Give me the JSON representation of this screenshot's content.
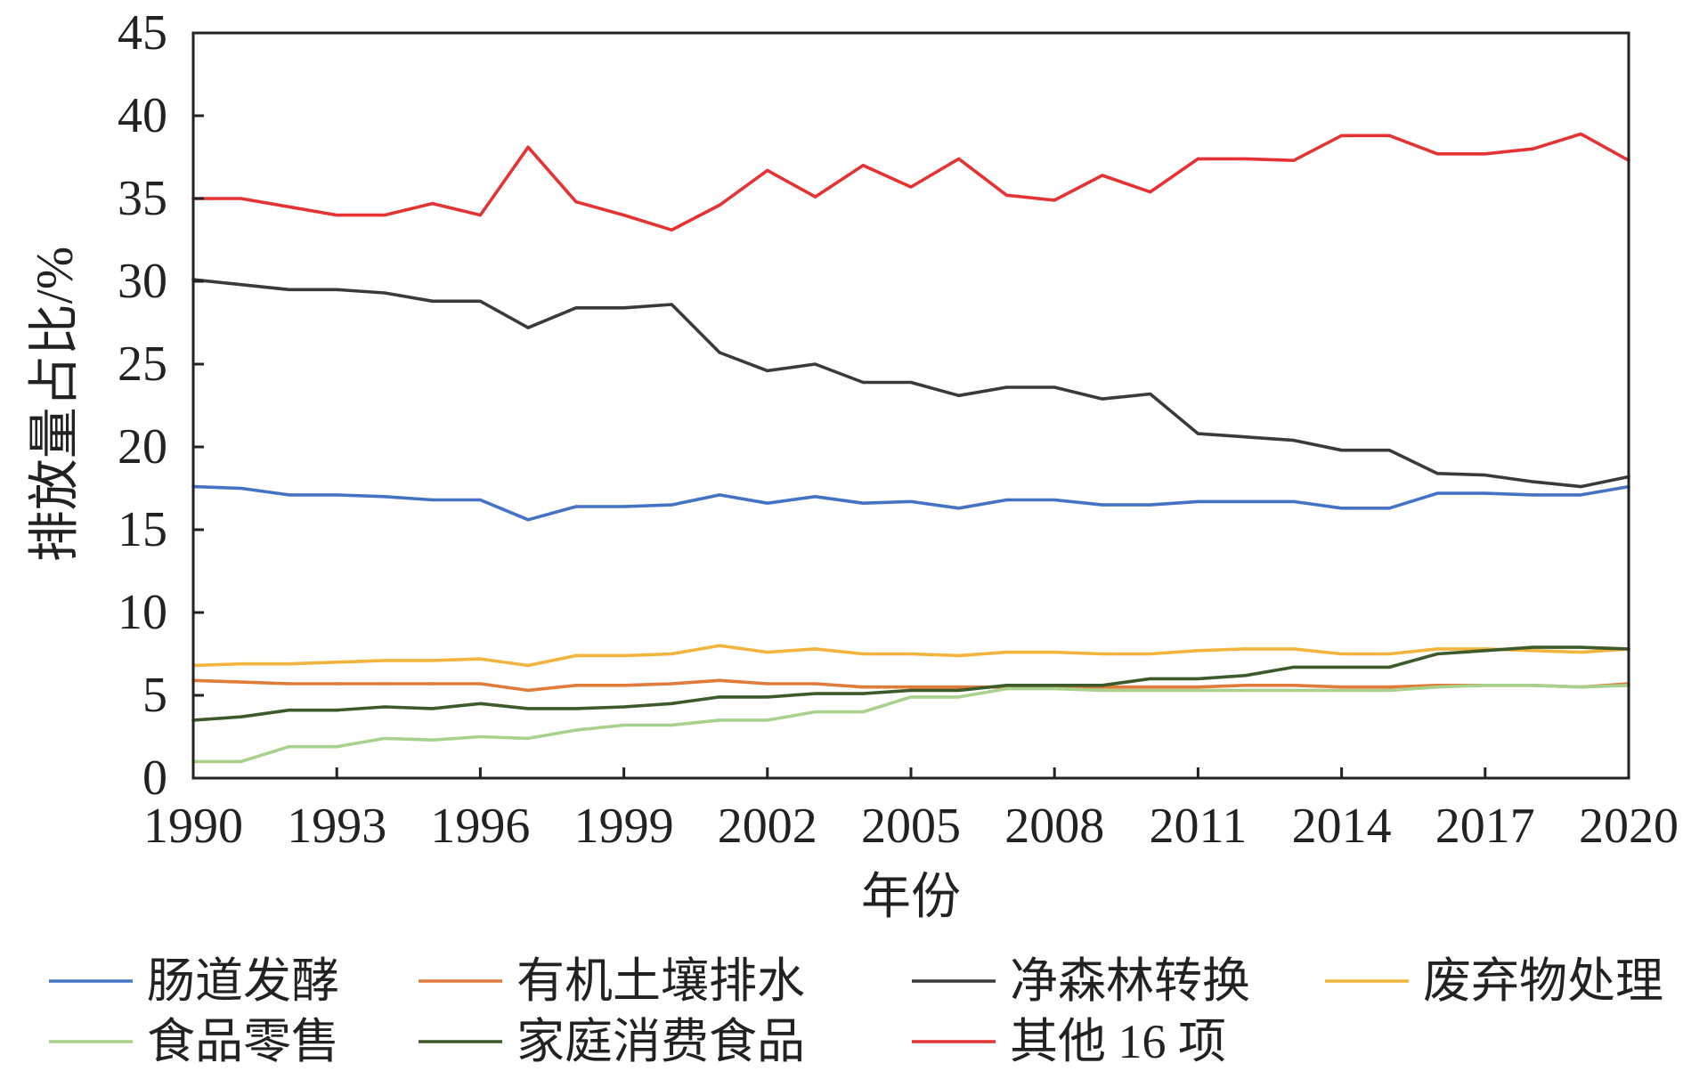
{
  "chart_data": {
    "type": "line",
    "xlabel": "年份",
    "ylabel": "排放量占比/%",
    "x": [
      1990,
      1991,
      1992,
      1993,
      1994,
      1995,
      1996,
      1997,
      1998,
      1999,
      2000,
      2001,
      2002,
      2003,
      2004,
      2005,
      2006,
      2007,
      2008,
      2009,
      2010,
      2011,
      2012,
      2013,
      2014,
      2015,
      2016,
      2017,
      2018,
      2019,
      2020
    ],
    "xlim": [
      1990,
      2020
    ],
    "ylim": [
      0,
      45
    ],
    "x_ticks": [
      1990,
      1993,
      1996,
      1999,
      2002,
      2005,
      2008,
      2011,
      2014,
      2017,
      2020
    ],
    "y_ticks": [
      0,
      5,
      10,
      15,
      20,
      25,
      30,
      35,
      40,
      45
    ],
    "grid": false,
    "legend_position": "bottom",
    "series": [
      {
        "name": "肠道发酵",
        "color": "#4472C4",
        "values": [
          17.6,
          17.5,
          17.1,
          17.1,
          17.0,
          16.8,
          16.8,
          15.6,
          16.4,
          16.4,
          16.5,
          17.1,
          16.6,
          17.0,
          16.6,
          16.7,
          16.3,
          16.8,
          16.8,
          16.5,
          16.5,
          16.7,
          16.7,
          16.7,
          16.3,
          16.3,
          17.2,
          17.2,
          17.1,
          17.1,
          17.6
        ]
      },
      {
        "name": "有机土壤排水",
        "color": "#E07B39",
        "values": [
          5.9,
          5.8,
          5.7,
          5.7,
          5.7,
          5.7,
          5.7,
          5.3,
          5.6,
          5.6,
          5.7,
          5.9,
          5.7,
          5.7,
          5.5,
          5.5,
          5.5,
          5.5,
          5.5,
          5.5,
          5.5,
          5.5,
          5.6,
          5.6,
          5.5,
          5.5,
          5.6,
          5.6,
          5.6,
          5.5,
          5.7
        ]
      },
      {
        "name": "净森林转换",
        "color": "#3A3A3A",
        "values": [
          30.1,
          29.8,
          29.5,
          29.5,
          29.3,
          28.8,
          28.8,
          27.2,
          28.4,
          28.4,
          28.6,
          25.7,
          24.6,
          25.0,
          23.9,
          23.9,
          23.1,
          23.6,
          23.6,
          22.9,
          23.2,
          20.8,
          20.6,
          20.4,
          19.8,
          19.8,
          18.4,
          18.3,
          17.9,
          17.6,
          18.2
        ]
      },
      {
        "name": "废弃物处理",
        "color": "#F2B43C",
        "values": [
          6.8,
          6.9,
          6.9,
          7.0,
          7.1,
          7.1,
          7.2,
          6.8,
          7.4,
          7.4,
          7.5,
          8.0,
          7.6,
          7.8,
          7.5,
          7.5,
          7.4,
          7.6,
          7.6,
          7.5,
          7.5,
          7.7,
          7.8,
          7.8,
          7.5,
          7.5,
          7.8,
          7.8,
          7.7,
          7.6,
          7.8
        ]
      },
      {
        "name": "食品零售",
        "color": "#A8D18D",
        "values": [
          1.0,
          1.0,
          1.9,
          1.9,
          2.4,
          2.3,
          2.5,
          2.4,
          2.9,
          3.2,
          3.2,
          3.5,
          3.5,
          4.0,
          4.0,
          4.9,
          4.9,
          5.4,
          5.4,
          5.3,
          5.3,
          5.3,
          5.3,
          5.3,
          5.3,
          5.3,
          5.5,
          5.6,
          5.6,
          5.5,
          5.6
        ]
      },
      {
        "name": "家庭消费食品",
        "color": "#3D5A2A",
        "values": [
          3.5,
          3.7,
          4.1,
          4.1,
          4.3,
          4.2,
          4.5,
          4.2,
          4.2,
          4.3,
          4.5,
          4.9,
          4.9,
          5.1,
          5.1,
          5.3,
          5.3,
          5.6,
          5.6,
          5.6,
          6.0,
          6.0,
          6.2,
          6.7,
          6.7,
          6.7,
          7.5,
          7.7,
          7.9,
          7.9,
          7.8
        ]
      },
      {
        "name": "其他 16 项",
        "color": "#E53232",
        "values": [
          35.0,
          35.0,
          34.5,
          34.0,
          34.0,
          34.7,
          34.0,
          38.1,
          34.8,
          34.0,
          33.1,
          34.6,
          36.7,
          35.1,
          37.0,
          35.7,
          37.4,
          35.2,
          34.9,
          36.4,
          35.4,
          37.4,
          37.4,
          37.3,
          38.8,
          38.8,
          37.7,
          37.7,
          38.0,
          38.9,
          37.3
        ]
      }
    ]
  }
}
